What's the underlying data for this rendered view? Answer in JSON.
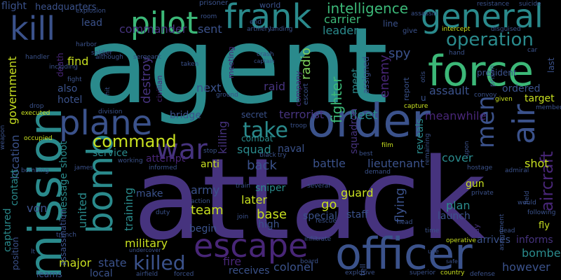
{
  "palette": {
    "teal": "#2a8a8c",
    "green": "#3cb878",
    "light_green": "#7fd35e",
    "yellow_green": "#b5de2b",
    "blue": "#3b528b",
    "indigo": "#46337e",
    "purple": "#482677",
    "dark_purple": "#440154",
    "cyan": "#21918c",
    "mint": "#5ec962"
  },
  "words": [
    {
      "text": "agent"
    },
    {
      "text": "attack"
    },
    {
      "text": "order"
    },
    {
      "text": "mission"
    },
    {
      "text": "officer"
    },
    {
      "text": "force"
    },
    {
      "text": "frank"
    },
    {
      "text": "general"
    },
    {
      "text": "pilot"
    },
    {
      "text": "kill"
    },
    {
      "text": "plane"
    },
    {
      "text": "bomb"
    },
    {
      "text": "escape"
    },
    {
      "text": "war"
    },
    {
      "text": "air"
    },
    {
      "text": "operation"
    },
    {
      "text": "men"
    },
    {
      "text": "aircraft"
    },
    {
      "text": "command"
    },
    {
      "text": "take"
    },
    {
      "text": "killed"
    },
    {
      "text": "intelligence"
    },
    {
      "text": "commander"
    },
    {
      "text": "carrier"
    },
    {
      "text": "leader"
    },
    {
      "text": "radio"
    },
    {
      "text": "spy"
    },
    {
      "text": "enemy"
    },
    {
      "text": "target"
    },
    {
      "text": "ordered"
    },
    {
      "text": "assault"
    },
    {
      "text": "fighter"
    },
    {
      "text": "raid"
    },
    {
      "text": "terrorist"
    },
    {
      "text": "fleet"
    },
    {
      "text": "meanwhile"
    },
    {
      "text": "squad"
    },
    {
      "text": "naval"
    },
    {
      "text": "battle"
    },
    {
      "text": "lieutenant"
    },
    {
      "text": "cover"
    },
    {
      "text": "back"
    },
    {
      "text": "army"
    },
    {
      "text": "sniper"
    },
    {
      "text": "guard"
    },
    {
      "text": "gun"
    },
    {
      "text": "plan"
    },
    {
      "text": "launch"
    },
    {
      "text": "shot"
    },
    {
      "text": "team"
    },
    {
      "text": "later"
    },
    {
      "text": "base"
    },
    {
      "text": "go"
    },
    {
      "text": "flying"
    },
    {
      "text": "military"
    },
    {
      "text": "major"
    },
    {
      "text": "state"
    },
    {
      "text": "fire"
    },
    {
      "text": "receives"
    },
    {
      "text": "colonel"
    },
    {
      "text": "bomber"
    },
    {
      "text": "however"
    },
    {
      "text": "arrives"
    },
    {
      "text": "informs"
    },
    {
      "text": "find"
    },
    {
      "text": "destroy"
    },
    {
      "text": "next"
    },
    {
      "text": "sent"
    },
    {
      "text": "also"
    },
    {
      "text": "hotel"
    },
    {
      "text": "government"
    },
    {
      "text": "location"
    },
    {
      "text": "contact"
    },
    {
      "text": "von"
    },
    {
      "text": "united"
    },
    {
      "text": "message"
    },
    {
      "text": "shoot"
    },
    {
      "text": "training"
    },
    {
      "text": "service"
    },
    {
      "text": "attempt"
    },
    {
      "text": "anti"
    },
    {
      "text": "make"
    },
    {
      "text": "begin"
    },
    {
      "text": "high"
    },
    {
      "text": "special"
    },
    {
      "text": "captured"
    },
    {
      "text": "position"
    },
    {
      "text": "assassination"
    },
    {
      "text": "local"
    },
    {
      "text": "bridge"
    },
    {
      "text": "secret"
    },
    {
      "text": "combat"
    },
    {
      "text": "killing"
    },
    {
      "text": "squadron"
    },
    {
      "text": "meet"
    },
    {
      "text": "assigned"
    },
    {
      "text": "reveals"
    },
    {
      "text": "lead"
    },
    {
      "text": "flight"
    },
    {
      "text": "headquarters"
    },
    {
      "text": "prisoner"
    },
    {
      "text": "world"
    },
    {
      "text": "president"
    },
    {
      "text": "line"
    },
    {
      "text": "last"
    },
    {
      "text": "fly"
    },
    {
      "text": "staff"
    },
    {
      "text": "death"
    },
    {
      "text": "learns"
    },
    {
      "text": "report"
    },
    {
      "text": "company"
    },
    {
      "text": "civilian"
    },
    {
      "text": "escort"
    },
    {
      "text": "meeting"
    },
    {
      "text": "explosion"
    },
    {
      "text": "resistance"
    },
    {
      "text": "suicide"
    },
    {
      "text": "assassin"
    },
    {
      "text": "give"
    },
    {
      "text": "intercept"
    },
    {
      "text": "disguised"
    },
    {
      "text": "soldier"
    },
    {
      "text": "artillery"
    },
    {
      "text": "landing"
    },
    {
      "text": "sergeant"
    },
    {
      "text": "harbor"
    },
    {
      "text": "handler"
    },
    {
      "text": "crash"
    },
    {
      "text": "captain"
    },
    {
      "text": "taken"
    },
    {
      "text": "although"
    },
    {
      "text": "including"
    },
    {
      "text": "fight"
    },
    {
      "text": "hit"
    },
    {
      "text": "drop"
    },
    {
      "text": "executed"
    },
    {
      "text": "division"
    },
    {
      "text": "occupied"
    },
    {
      "text": "weapon"
    },
    {
      "text": "bombing"
    },
    {
      "text": "james"
    },
    {
      "text": "working"
    },
    {
      "text": "informed"
    },
    {
      "text": "stop"
    },
    {
      "text": "duty"
    },
    {
      "text": "action"
    },
    {
      "text": "join"
    },
    {
      "text": "train"
    },
    {
      "text": "several"
    },
    {
      "text": "rescue"
    },
    {
      "text": "board"
    },
    {
      "text": "infiltrate"
    },
    {
      "text": "explosive"
    },
    {
      "text": "tell"
    },
    {
      "text": "superior"
    },
    {
      "text": "country"
    },
    {
      "text": "defense"
    },
    {
      "text": "airfield"
    },
    {
      "text": "forced"
    },
    {
      "text": "undercover"
    },
    {
      "text": "trench"
    },
    {
      "text": "hand"
    },
    {
      "text": "car"
    },
    {
      "text": "prison"
    },
    {
      "text": "capture"
    },
    {
      "text": "given"
    },
    {
      "text": "member"
    },
    {
      "text": "field"
    },
    {
      "text": "would"
    },
    {
      "text": "following"
    },
    {
      "text": "dead"
    },
    {
      "text": "time"
    },
    {
      "text": "head"
    },
    {
      "text": "use"
    },
    {
      "text": "safe"
    },
    {
      "text": "operative"
    },
    {
      "text": "private"
    },
    {
      "text": "admiral"
    },
    {
      "text": "hostage"
    },
    {
      "text": "demand"
    },
    {
      "text": "best"
    },
    {
      "text": "film"
    },
    {
      "text": "remaining"
    },
    {
      "text": "upon"
    },
    {
      "text": "troop"
    },
    {
      "text": "day"
    },
    {
      "text": "room"
    },
    {
      "text": "ground"
    },
    {
      "text": "end"
    },
    {
      "text": "try"
    },
    {
      "text": "black"
    },
    {
      "text": "lt"
    },
    {
      "text": "assignment"
    },
    {
      "text": "convoy"
    },
    {
      "text": "otis"
    },
    {
      "text": "u"
    }
  ]
}
